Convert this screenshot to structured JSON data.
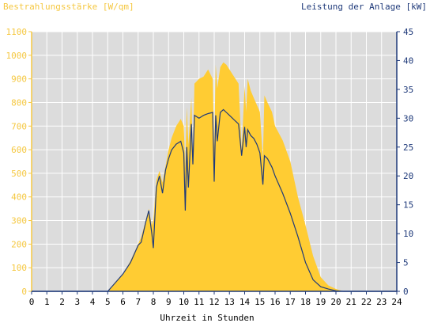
{
  "chart_data": {
    "type": "area",
    "title_left": "Bestrahlungsstärke [W/qm]",
    "title_right": "Leistung der Anlage [kW]",
    "xlabel": "Uhrzeit in Stunden",
    "xlim": [
      0,
      24
    ],
    "x_ticks": [
      0,
      1,
      2,
      3,
      4,
      5,
      6,
      7,
      8,
      9,
      10,
      11,
      12,
      13,
      14,
      15,
      16,
      17,
      18,
      19,
      20,
      21,
      22,
      23,
      24
    ],
    "y_left_lim": [
      0,
      1100
    ],
    "y_left_ticks": [
      0,
      100,
      200,
      300,
      400,
      500,
      600,
      700,
      800,
      900,
      1000,
      1100
    ],
    "y_right_lim": [
      0,
      45
    ],
    "y_right_ticks": [
      0,
      5,
      10,
      15,
      20,
      25,
      30,
      35,
      40,
      45
    ],
    "grid": true,
    "colors": {
      "irradiance": "#ffcc33",
      "power": "#1f3a7a",
      "plot_bg": "#dcdcdc",
      "grid": "#ffffff",
      "left_axis": "#f5c842",
      "right_axis": "#1f3a7a"
    },
    "series": [
      {
        "unit": "W/qm",
        "axis": "left",
        "style": "filled-area",
        "x": [
          0,
          5,
          5.5,
          6,
          6.5,
          7,
          7.2,
          7.5,
          7.7,
          7.9,
          8,
          8.2,
          8.4,
          8.6,
          8.8,
          9,
          9.2,
          9.5,
          9.8,
          10,
          10.1,
          10.2,
          10.3,
          10.5,
          10.6,
          10.7,
          11,
          11.3,
          11.6,
          11.9,
          12,
          12.1,
          12.2,
          12.4,
          12.6,
          12.8,
          13,
          13.2,
          13.4,
          13.6,
          13.8,
          14,
          14.1,
          14.2,
          14.4,
          14.6,
          14.8,
          15,
          15.2,
          15.3,
          15.5,
          15.8,
          16,
          16.5,
          17,
          17.5,
          18,
          18.5,
          19,
          19.5,
          20,
          20.5,
          24
        ],
        "values": [
          0,
          0,
          40,
          70,
          130,
          200,
          230,
          300,
          350,
          280,
          300,
          470,
          510,
          460,
          530,
          600,
          650,
          700,
          730,
          700,
          520,
          780,
          620,
          820,
          560,
          880,
          900,
          910,
          940,
          900,
          610,
          960,
          860,
          950,
          970,
          960,
          940,
          920,
          900,
          880,
          600,
          870,
          760,
          900,
          850,
          820,
          790,
          760,
          560,
          830,
          800,
          760,
          700,
          640,
          550,
          400,
          280,
          150,
          60,
          25,
          10,
          0,
          0
        ]
      },
      {
        "unit": "kW",
        "axis": "right",
        "style": "line",
        "x": [
          0,
          5,
          5.5,
          6,
          6.5,
          7,
          7.2,
          7.5,
          7.7,
          7.9,
          8,
          8.2,
          8.4,
          8.6,
          8.8,
          9,
          9.2,
          9.5,
          9.8,
          10,
          10.1,
          10.2,
          10.3,
          10.5,
          10.6,
          10.7,
          11,
          11.3,
          11.6,
          11.9,
          12,
          12.1,
          12.2,
          12.4,
          12.6,
          12.8,
          13,
          13.2,
          13.4,
          13.6,
          13.8,
          14,
          14.1,
          14.2,
          14.4,
          14.6,
          14.8,
          15,
          15.2,
          15.3,
          15.5,
          15.8,
          16,
          16.5,
          17,
          17.5,
          18,
          18.5,
          19,
          19.5,
          20,
          20.5,
          24
        ],
        "values": [
          0,
          0,
          1.5,
          3,
          5,
          8,
          8.5,
          12,
          14,
          10,
          7.5,
          18,
          20,
          17,
          21,
          23,
          24.5,
          25.5,
          26,
          24,
          14,
          25,
          18,
          29,
          22,
          30.5,
          30,
          30.5,
          30.8,
          31,
          19,
          30.5,
          26,
          31,
          31.5,
          31,
          30.5,
          30,
          29.5,
          29,
          23.5,
          28.5,
          25,
          28,
          27,
          26.5,
          25.5,
          24,
          18.5,
          23.5,
          23,
          21.5,
          20,
          17,
          13.5,
          9.5,
          5,
          2,
          0.8,
          0.4,
          0.1,
          0,
          0
        ]
      }
    ]
  }
}
